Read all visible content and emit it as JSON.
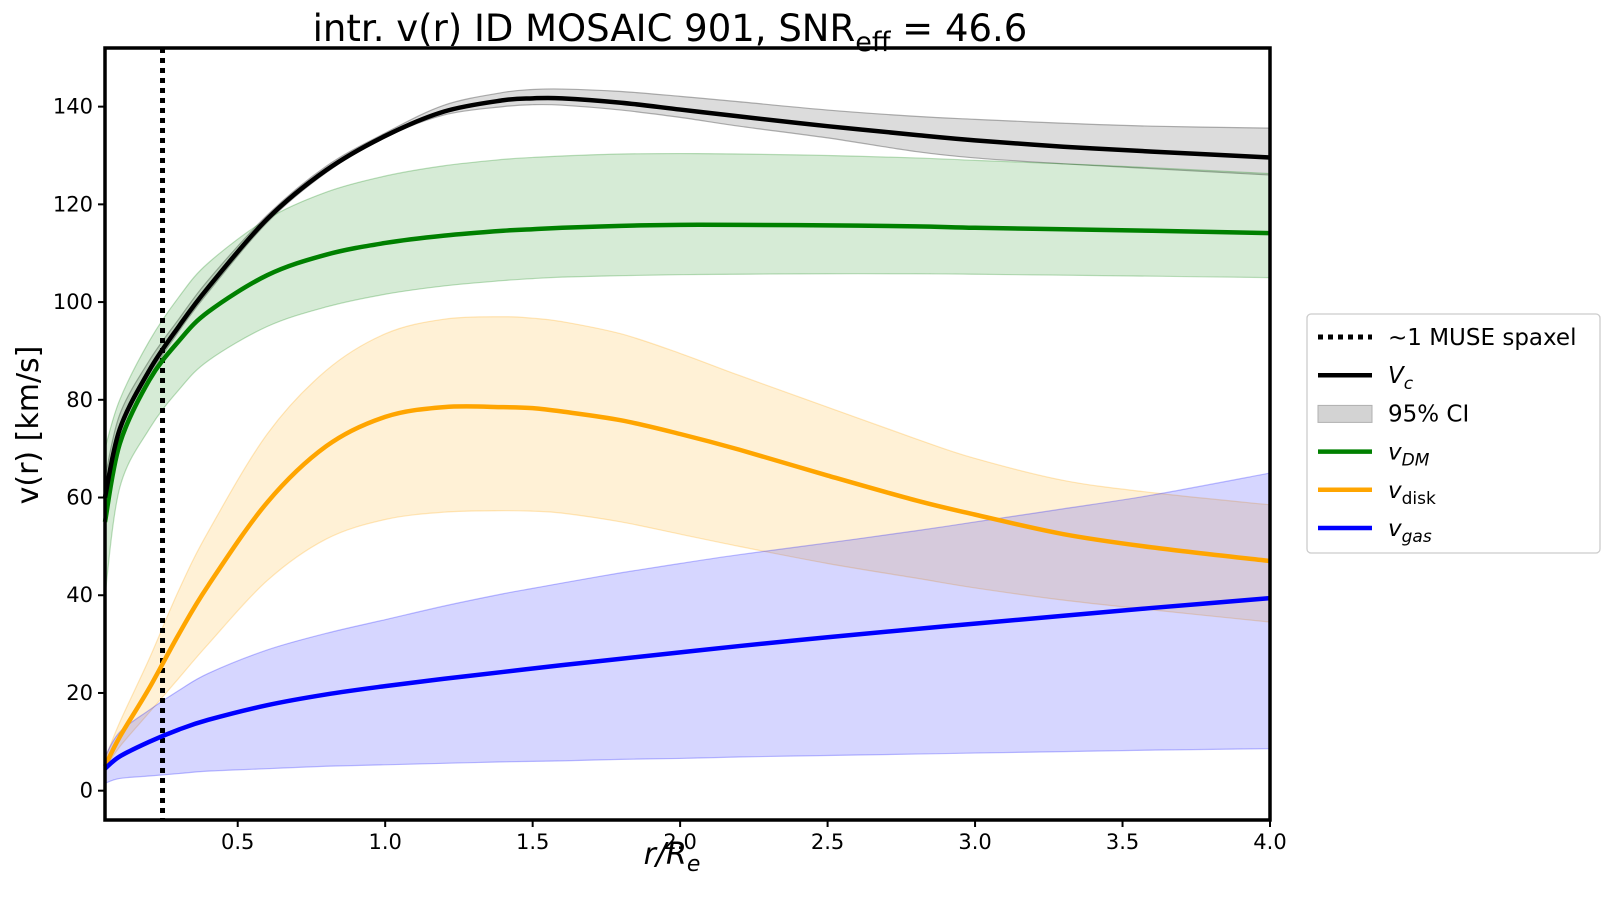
{
  "chart_data": {
    "type": "line",
    "title": {
      "main": "intr. v(r) ID MOSAIC 901, SNR",
      "sub": "eff",
      "rest": " = 46.6"
    },
    "xlabel": {
      "base": "r/R",
      "sub": "e"
    },
    "ylabel": "v(r) [km/s]",
    "xlim": [
      0.05,
      4.0
    ],
    "ylim": [
      -6,
      152
    ],
    "xticks": [
      0.5,
      1.0,
      1.5,
      2.0,
      2.5,
      3.0,
      3.5,
      4.0
    ],
    "xtick_labels": [
      "0.5",
      "1.0",
      "1.5",
      "2.0",
      "2.5",
      "3.0",
      "3.5",
      "4.0"
    ],
    "yticks": [
      0,
      20,
      40,
      60,
      80,
      100,
      120,
      140
    ],
    "ytick_labels": [
      "0",
      "20",
      "40",
      "60",
      "80",
      "100",
      "120",
      "140"
    ],
    "grid": false,
    "legend_position": "outside-right",
    "muse_spaxel": {
      "x": 0.245,
      "label": "~1 MUSE spaxel",
      "color": "#000000"
    },
    "x": [
      0.05,
      0.1,
      0.2,
      0.3,
      0.4,
      0.6,
      0.8,
      1.0,
      1.2,
      1.4,
      1.5,
      1.6,
      1.8,
      2.0,
      2.2,
      2.5,
      2.8,
      3.0,
      3.3,
      3.6,
      4.0
    ],
    "series": [
      {
        "name": "V_c",
        "label_base": "V",
        "label_sub": "c",
        "italic": true,
        "color": "#000000",
        "values": [
          60,
          74,
          86,
          95,
          103,
          117,
          127,
          134,
          139,
          141.3,
          141.7,
          141.7,
          140.8,
          139.4,
          138,
          136,
          134.2,
          133.1,
          131.8,
          130.8,
          129.6
        ],
        "lower": [
          57,
          71,
          84.5,
          94,
          102,
          116.3,
          126.5,
          133.7,
          138.3,
          140,
          140.4,
          140.3,
          139.3,
          137.8,
          136,
          133.6,
          130.8,
          129.5,
          128.3,
          127.3,
          126
        ],
        "upper": [
          64,
          77,
          88,
          96.5,
          104.5,
          117.8,
          127.8,
          134.6,
          140.3,
          142.9,
          143.5,
          143.6,
          143.1,
          142.1,
          141,
          139.3,
          138,
          137.4,
          136.6,
          136,
          135.6
        ]
      },
      {
        "name": "v_DM",
        "label_base": "v",
        "label_sub": "DM",
        "italic": true,
        "color": "#008000",
        "values": [
          55,
          71,
          84,
          92,
          98,
          105.5,
          109.7,
          112.1,
          113.6,
          114.6,
          114.9,
          115.2,
          115.6,
          115.8,
          115.8,
          115.7,
          115.5,
          115.2,
          114.9,
          114.6,
          114.1
        ],
        "lower": [
          40,
          62,
          74,
          82,
          88,
          95,
          99,
          101.6,
          103.3,
          104.4,
          104.8,
          105.1,
          105.4,
          105.6,
          105.7,
          105.8,
          105.8,
          105.7,
          105.5,
          105.3,
          105
        ],
        "upper": [
          70,
          80,
          92,
          101,
          108,
          117,
          122.5,
          125.8,
          127.9,
          129.2,
          129.6,
          129.9,
          130.3,
          130.4,
          130.3,
          130,
          129.5,
          129,
          128.3,
          127.5,
          126.3
        ]
      },
      {
        "name": "95% CI",
        "legend_type": "band",
        "color": "#d3d3d3",
        "legend_only": true
      },
      {
        "name": "v_disk",
        "label_base": "v",
        "label_sub": "disk",
        "italic": false,
        "color": "#ffa500",
        "values": [
          5,
          11,
          21,
          32,
          42,
          59,
          70.5,
          76.5,
          78.5,
          78.5,
          78.3,
          77.6,
          75.8,
          73,
          69.8,
          64.5,
          59.4,
          56.5,
          52.5,
          49.8,
          47
        ],
        "lower": [
          4.5,
          9,
          16,
          23,
          30,
          43,
          51.5,
          55.5,
          57,
          57.3,
          57.2,
          56.8,
          55,
          52.5,
          50,
          46.5,
          43.5,
          41.5,
          39,
          37,
          34.5
        ],
        "upper": [
          6.5,
          14,
          27,
          41,
          53,
          73,
          86,
          93.5,
          96.5,
          97,
          96.7,
          96,
          93.5,
          89.5,
          85,
          78.5,
          72,
          68,
          63.5,
          61,
          58.5
        ]
      },
      {
        "name": "v_gas",
        "label_base": "v",
        "label_sub": "gas",
        "italic": true,
        "color": "#0000ff",
        "values": [
          4.5,
          7,
          10,
          12.5,
          14.5,
          17.5,
          19.7,
          21.4,
          22.9,
          24.3,
          25,
          25.7,
          27,
          28.3,
          29.6,
          31.4,
          33.1,
          34.2,
          35.8,
          37.4,
          39.4
        ],
        "lower": [
          1.5,
          2.5,
          3,
          3.5,
          4,
          4.5,
          5,
          5.3,
          5.6,
          5.9,
          6,
          6.1,
          6.4,
          6.6,
          6.9,
          7.2,
          7.5,
          7.7,
          8,
          8.3,
          8.6
        ],
        "upper": [
          7,
          12,
          16.5,
          20.5,
          24,
          28.8,
          32.2,
          35,
          37.8,
          40.3,
          41.4,
          42.5,
          44.6,
          46.5,
          48.3,
          50.7,
          53.2,
          55,
          57.7,
          60.5,
          65
        ]
      }
    ],
    "legend": [
      {
        "type": "dotted",
        "text": "~1 MUSE spaxel",
        "color": "#000000"
      },
      {
        "type": "line",
        "base": "V",
        "sub": "c",
        "italic": true,
        "color": "#000000"
      },
      {
        "type": "band",
        "text": "95% CI",
        "color": "#d3d3d3"
      },
      {
        "type": "line",
        "base": "v",
        "sub": "DM",
        "italic": true,
        "color": "#008000"
      },
      {
        "type": "line",
        "base": "v",
        "sub": "disk",
        "italic": false,
        "color": "#ffa500"
      },
      {
        "type": "line",
        "base": "v",
        "sub": "gas",
        "italic": true,
        "color": "#0000ff"
      }
    ]
  }
}
